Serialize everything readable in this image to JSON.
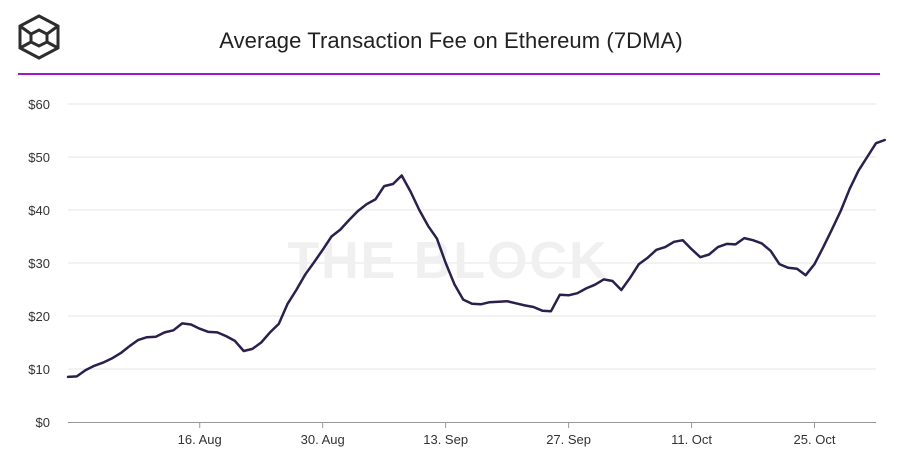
{
  "header": {
    "title": "Average Transaction Fee on Ethereum (7DMA)",
    "logo_icon": "the-block-cube-icon"
  },
  "watermark": "THE BLOCK",
  "colors": {
    "line": "#2b1f4d",
    "accent": "#a218c9",
    "grid": "#e6e6e6"
  },
  "chart_data": {
    "type": "line",
    "title": "Average Transaction Fee on Ethereum (7DMA)",
    "xlabel": "",
    "ylabel": "",
    "ylim": [
      0,
      60
    ],
    "y_ticks": [
      0,
      10,
      20,
      30,
      40,
      50,
      60
    ],
    "y_tick_labels": [
      "$0",
      "$10",
      "$20",
      "$30",
      "$40",
      "$50",
      "$60"
    ],
    "x_ticks": [
      {
        "label": "16. Aug",
        "day": 15
      },
      {
        "label": "30. Aug",
        "day": 29
      },
      {
        "label": "13. Sep",
        "day": 43
      },
      {
        "label": "27. Sep",
        "day": 57
      },
      {
        "label": "11. Oct",
        "day": 71
      },
      {
        "label": "25. Oct",
        "day": 85
      }
    ],
    "x_range": [
      0,
      92
    ],
    "grid": true,
    "legend": "none",
    "series": [
      {
        "name": "Average Transaction Fee (7DMA)",
        "unit": "USD",
        "x_start_label": "1. Aug",
        "values": [
          8.5,
          8.6,
          9.8,
          10.6,
          11.2,
          12.0,
          13.0,
          14.3,
          15.5,
          16.0,
          16.1,
          16.9,
          17.3,
          18.6,
          18.4,
          17.6,
          17.0,
          16.9,
          16.2,
          15.3,
          13.4,
          13.8,
          15.0,
          16.9,
          18.5,
          22.3,
          24.9,
          27.8,
          30.1,
          32.5,
          35.0,
          36.3,
          38.1,
          39.8,
          41.1,
          42.0,
          44.5,
          44.9,
          46.5,
          43.5,
          40.0,
          37.0,
          34.6,
          30.0,
          26.0,
          23.1,
          22.3,
          22.2,
          22.6,
          22.7,
          22.8,
          22.4,
          22.0,
          21.7,
          21.0,
          20.9,
          24.0,
          23.9,
          24.3,
          25.2,
          25.9,
          26.9,
          26.6,
          24.9,
          27.2,
          29.8,
          31.0,
          32.5,
          33.0,
          34.0,
          34.3,
          32.6,
          31.1,
          31.6,
          33.0,
          33.6,
          33.5,
          34.7,
          34.3,
          33.7,
          32.3,
          29.8,
          29.1,
          28.9,
          27.7,
          29.8,
          33.0,
          36.4,
          39.9,
          44.0,
          47.4,
          50.0,
          52.6,
          53.2
        ]
      }
    ]
  }
}
